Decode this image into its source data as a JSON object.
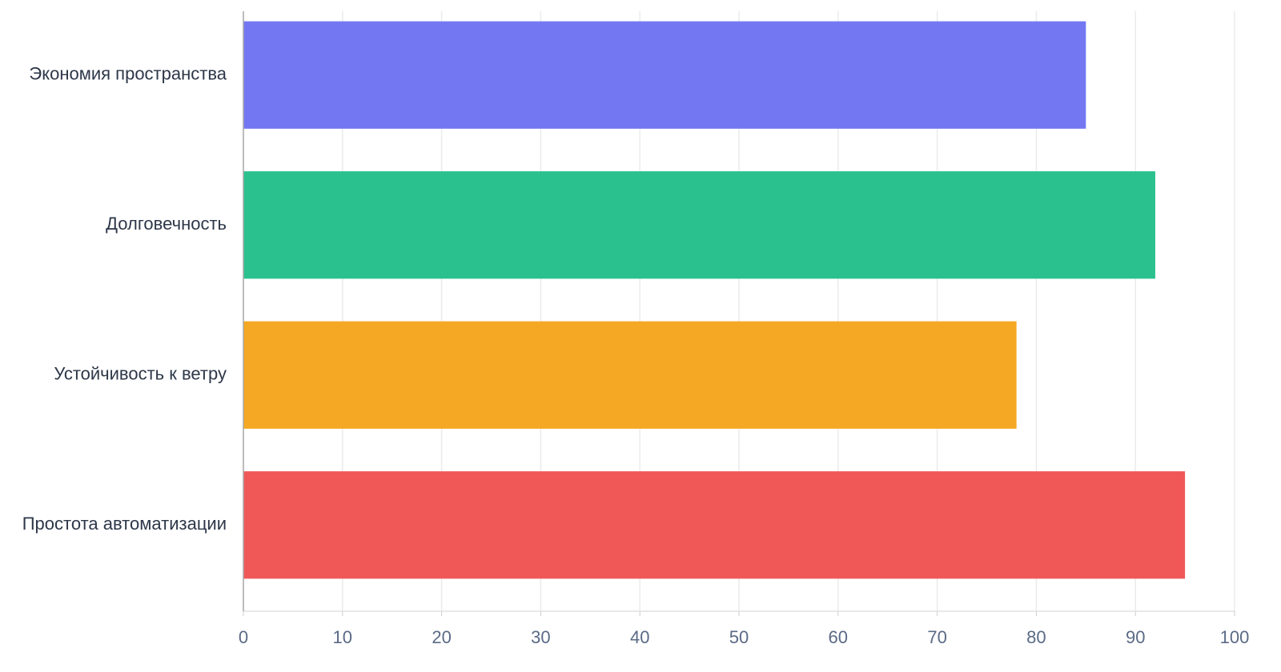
{
  "chart_data": {
    "type": "bar",
    "orientation": "horizontal",
    "categories": [
      "Экономия пространства",
      "Долговечность",
      "Устойчивость к ветру",
      "Простота автоматизации"
    ],
    "values": [
      85,
      92,
      78,
      95
    ],
    "colors": [
      "#7378f2",
      "#2ac18f",
      "#f5a823",
      "#f05858"
    ],
    "xlim": [
      0,
      100
    ],
    "xticks": [
      0,
      10,
      20,
      30,
      40,
      50,
      60,
      70,
      80,
      90,
      100
    ],
    "grid": true
  }
}
